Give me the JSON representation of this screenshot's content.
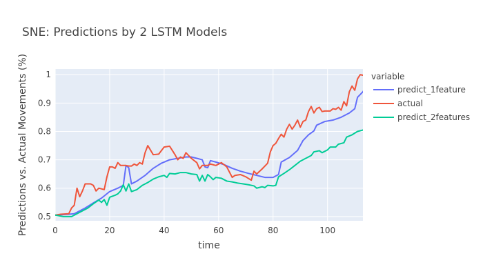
{
  "chart_data": {
    "type": "line",
    "title": "SNE: Predictions by 2 LSTM Models",
    "xlabel": "time",
    "ylabel": "Predictions vs. Actual Movements (%)",
    "legend_title": "variable",
    "legend_position": "right",
    "grid": true,
    "xlim": [
      0,
      113
    ],
    "ylim": [
      0.485,
      1.02
    ],
    "xticks": [
      0,
      20,
      40,
      60,
      80,
      100
    ],
    "yticks": [
      0.5,
      0.6,
      0.7,
      0.8,
      0.9,
      1
    ],
    "ytick_labels": [
      "0.5",
      "0.6",
      "0.7",
      "0.8",
      "0.9",
      "1"
    ],
    "series": [
      {
        "name": "predict_1feature",
        "color": "#636efa",
        "points": [
          [
            0,
            0.505
          ],
          [
            5,
            0.508
          ],
          [
            7,
            0.51
          ],
          [
            9,
            0.52
          ],
          [
            11,
            0.53
          ],
          [
            14,
            0.548
          ],
          [
            17,
            0.565
          ],
          [
            20,
            0.588
          ],
          [
            23,
            0.6
          ],
          [
            25,
            0.61
          ],
          [
            26,
            0.68
          ],
          [
            27,
            0.672
          ],
          [
            28,
            0.615
          ],
          [
            30,
            0.625
          ],
          [
            33,
            0.645
          ],
          [
            36,
            0.67
          ],
          [
            39,
            0.688
          ],
          [
            42,
            0.7
          ],
          [
            45,
            0.705
          ],
          [
            48,
            0.71
          ],
          [
            50,
            0.71
          ],
          [
            52,
            0.705
          ],
          [
            54,
            0.7
          ],
          [
            55,
            0.675
          ],
          [
            56,
            0.672
          ],
          [
            57,
            0.697
          ],
          [
            59,
            0.692
          ],
          [
            62,
            0.683
          ],
          [
            65,
            0.67
          ],
          [
            68,
            0.66
          ],
          [
            71,
            0.652
          ],
          [
            74,
            0.645
          ],
          [
            77,
            0.638
          ],
          [
            80,
            0.638
          ],
          [
            82,
            0.648
          ],
          [
            83,
            0.692
          ],
          [
            86,
            0.708
          ],
          [
            89,
            0.733
          ],
          [
            91,
            0.768
          ],
          [
            93,
            0.788
          ],
          [
            95,
            0.802
          ],
          [
            96,
            0.822
          ],
          [
            99,
            0.835
          ],
          [
            102,
            0.84
          ],
          [
            105,
            0.85
          ],
          [
            108,
            0.865
          ],
          [
            110,
            0.88
          ],
          [
            111,
            0.92
          ],
          [
            113,
            0.94
          ],
          [
            115,
            0.97
          ],
          [
            116,
            0.98
          ]
        ]
      },
      {
        "name": "actual",
        "color": "#ef553b",
        "points": [
          [
            0,
            0.505
          ],
          [
            2,
            0.508
          ],
          [
            5,
            0.51
          ],
          [
            6,
            0.53
          ],
          [
            7,
            0.54
          ],
          [
            8,
            0.6
          ],
          [
            9,
            0.57
          ],
          [
            10,
            0.59
          ],
          [
            11,
            0.615
          ],
          [
            13,
            0.615
          ],
          [
            14,
            0.61
          ],
          [
            15,
            0.59
          ],
          [
            16,
            0.6
          ],
          [
            18,
            0.595
          ],
          [
            19,
            0.64
          ],
          [
            20,
            0.675
          ],
          [
            21,
            0.675
          ],
          [
            22,
            0.67
          ],
          [
            23,
            0.69
          ],
          [
            24,
            0.68
          ],
          [
            26,
            0.68
          ],
          [
            27,
            0.678
          ],
          [
            28,
            0.678
          ],
          [
            29,
            0.685
          ],
          [
            30,
            0.68
          ],
          [
            31,
            0.69
          ],
          [
            32,
            0.685
          ],
          [
            33,
            0.725
          ],
          [
            34,
            0.75
          ],
          [
            36,
            0.718
          ],
          [
            38,
            0.72
          ],
          [
            40,
            0.745
          ],
          [
            42,
            0.748
          ],
          [
            44,
            0.718
          ],
          [
            45,
            0.7
          ],
          [
            46,
            0.71
          ],
          [
            47,
            0.705
          ],
          [
            48,
            0.725
          ],
          [
            50,
            0.705
          ],
          [
            52,
            0.69
          ],
          [
            53,
            0.668
          ],
          [
            54,
            0.68
          ],
          [
            56,
            0.68
          ],
          [
            57,
            0.685
          ],
          [
            59,
            0.68
          ],
          [
            61,
            0.69
          ],
          [
            63,
            0.675
          ],
          [
            65,
            0.638
          ],
          [
            66,
            0.645
          ],
          [
            68,
            0.648
          ],
          [
            70,
            0.64
          ],
          [
            72,
            0.628
          ],
          [
            73,
            0.66
          ],
          [
            74,
            0.65
          ],
          [
            76,
            0.668
          ],
          [
            78,
            0.688
          ],
          [
            79,
            0.728
          ],
          [
            80,
            0.75
          ],
          [
            81,
            0.758
          ],
          [
            82,
            0.775
          ],
          [
            83,
            0.79
          ],
          [
            84,
            0.78
          ],
          [
            85,
            0.808
          ],
          [
            86,
            0.825
          ],
          [
            87,
            0.808
          ],
          [
            88,
            0.822
          ],
          [
            89,
            0.84
          ],
          [
            90,
            0.815
          ],
          [
            91,
            0.835
          ],
          [
            92,
            0.84
          ],
          [
            93,
            0.87
          ],
          [
            94,
            0.888
          ],
          [
            95,
            0.865
          ],
          [
            96,
            0.88
          ],
          [
            97,
            0.885
          ],
          [
            98,
            0.87
          ],
          [
            99,
            0.872
          ],
          [
            101,
            0.872
          ],
          [
            102,
            0.88
          ],
          [
            103,
            0.878
          ],
          [
            104,
            0.885
          ],
          [
            105,
            0.875
          ],
          [
            106,
            0.905
          ],
          [
            107,
            0.89
          ],
          [
            108,
            0.94
          ],
          [
            109,
            0.96
          ],
          [
            110,
            0.945
          ],
          [
            111,
            0.985
          ],
          [
            112,
            1.0
          ],
          [
            113,
            0.998
          ],
          [
            114,
            0.998
          ],
          [
            115,
            0.995
          ]
        ]
      },
      {
        "name": "predict_2features",
        "color": "#00cc96",
        "points": [
          [
            0,
            0.505
          ],
          [
            3,
            0.5
          ],
          [
            6,
            0.5
          ],
          [
            8,
            0.51
          ],
          [
            10,
            0.52
          ],
          [
            12,
            0.53
          ],
          [
            14,
            0.545
          ],
          [
            16,
            0.558
          ],
          [
            17,
            0.55
          ],
          [
            18,
            0.56
          ],
          [
            19,
            0.54
          ],
          [
            20,
            0.568
          ],
          [
            22,
            0.575
          ],
          [
            23,
            0.58
          ],
          [
            24,
            0.59
          ],
          [
            25,
            0.612
          ],
          [
            26,
            0.59
          ],
          [
            27,
            0.615
          ],
          [
            28,
            0.588
          ],
          [
            30,
            0.595
          ],
          [
            32,
            0.61
          ],
          [
            34,
            0.62
          ],
          [
            36,
            0.632
          ],
          [
            38,
            0.64
          ],
          [
            40,
            0.645
          ],
          [
            41,
            0.638
          ],
          [
            42,
            0.652
          ],
          [
            44,
            0.65
          ],
          [
            46,
            0.655
          ],
          [
            48,
            0.655
          ],
          [
            50,
            0.65
          ],
          [
            52,
            0.648
          ],
          [
            53,
            0.625
          ],
          [
            54,
            0.645
          ],
          [
            55,
            0.625
          ],
          [
            56,
            0.648
          ],
          [
            57,
            0.64
          ],
          [
            58,
            0.63
          ],
          [
            59,
            0.638
          ],
          [
            61,
            0.635
          ],
          [
            63,
            0.625
          ],
          [
            65,
            0.622
          ],
          [
            67,
            0.618
          ],
          [
            69,
            0.615
          ],
          [
            71,
            0.612
          ],
          [
            73,
            0.608
          ],
          [
            74,
            0.6
          ],
          [
            76,
            0.605
          ],
          [
            77,
            0.602
          ],
          [
            78,
            0.61
          ],
          [
            80,
            0.608
          ],
          [
            81,
            0.61
          ],
          [
            82,
            0.64
          ],
          [
            84,
            0.652
          ],
          [
            86,
            0.665
          ],
          [
            88,
            0.68
          ],
          [
            90,
            0.695
          ],
          [
            92,
            0.705
          ],
          [
            94,
            0.715
          ],
          [
            95,
            0.728
          ],
          [
            97,
            0.732
          ],
          [
            98,
            0.725
          ],
          [
            100,
            0.735
          ],
          [
            101,
            0.745
          ],
          [
            103,
            0.745
          ],
          [
            104,
            0.755
          ],
          [
            106,
            0.76
          ],
          [
            107,
            0.78
          ],
          [
            109,
            0.788
          ],
          [
            111,
            0.8
          ],
          [
            113,
            0.805
          ],
          [
            116,
            0.808
          ]
        ]
      }
    ]
  }
}
